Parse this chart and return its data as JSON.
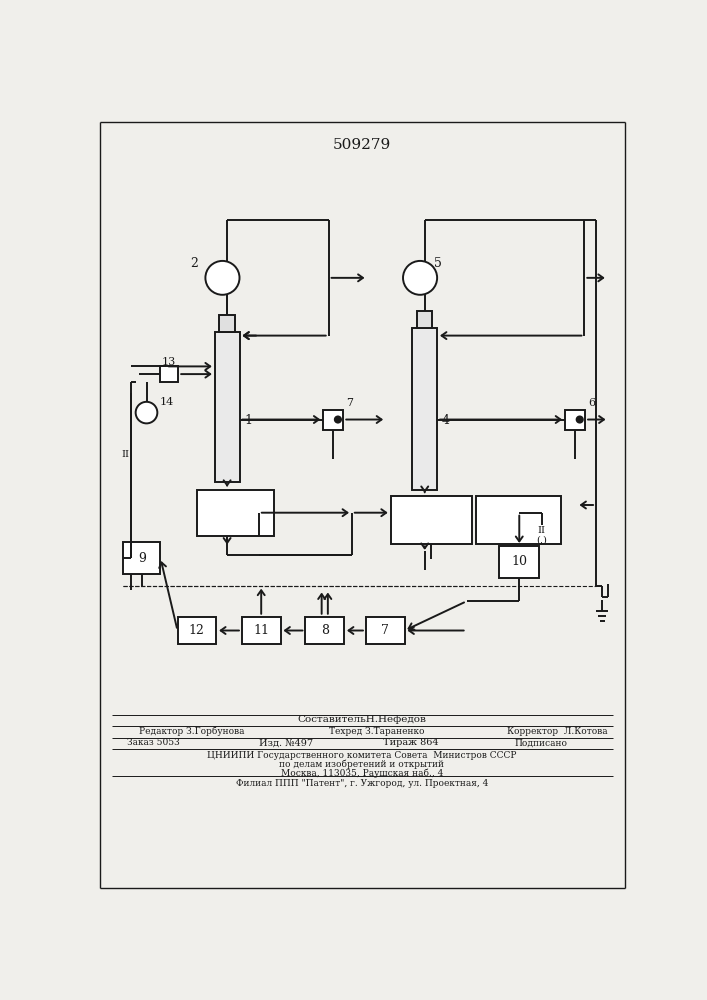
{
  "patent_number": "509279",
  "bg_color": "#f0efeb",
  "lc": "#1a1a1a",
  "lw": 1.4,
  "footer": {
    "composer": "СоставительН.Нефедов",
    "editor": "Редактор З.Горбунова",
    "techred": "Техред З.Тараненко",
    "corrector": "Корректор  Л.Котова",
    "order": "Заказ 5053",
    "izd": "Изд. №497",
    "tirazh": "Тираж 864",
    "podpisano": "Подписано",
    "org1": "ЦНИИПИ Государственного комитета Совета  Министров СССР",
    "org2": "по делам изобретений и открытий",
    "org3": "Москва, 113035, Раушская наб., 4",
    "org4": "Филиал ППП \"Патент\", г. Ужгород, ул. Проектная, 4"
  }
}
